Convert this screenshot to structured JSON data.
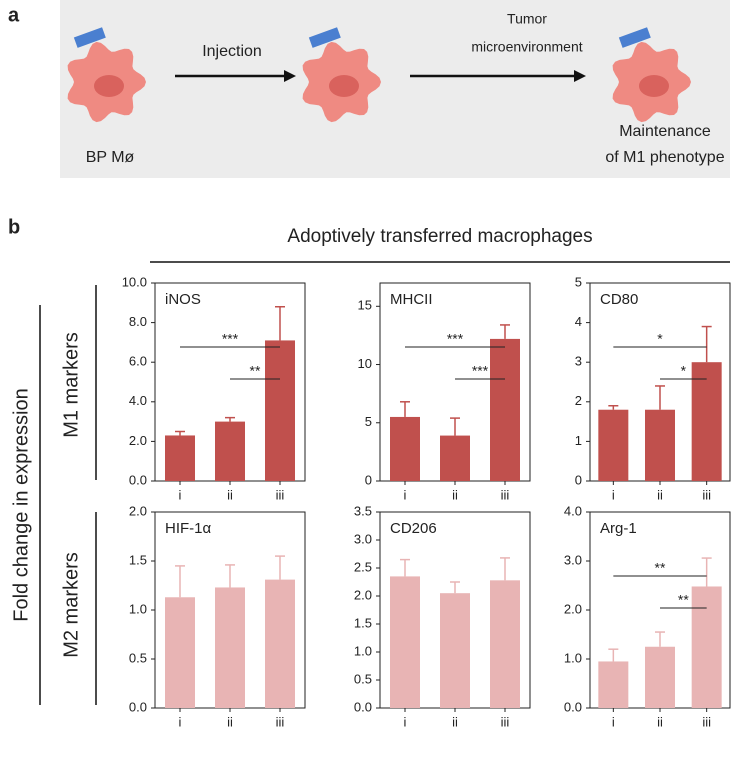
{
  "panel_a": {
    "label": "a",
    "start_label": "BP Mø",
    "injection_label": "Injection",
    "environment_label": [
      "Tumor",
      "microenvironment"
    ],
    "end_label": [
      "Maintenance",
      "of M1 phenotype"
    ]
  },
  "panel_b": {
    "label": "b",
    "group_title": "Adoptively transferred macrophages",
    "y_title": "Fold change in expression",
    "row_labels": [
      "M1 markers",
      "M2 markers"
    ]
  },
  "chart_data": [
    {
      "type": "bar",
      "title": "iNOS",
      "categories": [
        "i",
        "ii",
        "iii"
      ],
      "values": [
        2.3,
        3.0,
        7.1
      ],
      "errors": [
        0.2,
        0.2,
        1.7
      ],
      "color": "#c0504d",
      "ylim": [
        0,
        10
      ],
      "yticks": [
        {
          "value": 0,
          "label": "0.0"
        },
        {
          "value": 2,
          "label": "2.0"
        },
        {
          "value": 4,
          "label": "4.0"
        },
        {
          "value": 6,
          "label": "6.0"
        },
        {
          "value": 8,
          "label": "8.0"
        },
        {
          "value": 10,
          "label": "10.0"
        }
      ],
      "significance": [
        {
          "groups": [
            0,
            2
          ],
          "label": "***"
        },
        {
          "groups": [
            1,
            2
          ],
          "label": "**"
        }
      ]
    },
    {
      "type": "bar",
      "title": "MHCII",
      "categories": [
        "i",
        "ii",
        "iii"
      ],
      "values": [
        5.5,
        3.9,
        12.2
      ],
      "errors": [
        1.3,
        1.5,
        1.2
      ],
      "color": "#c0504d",
      "ylim": [
        0,
        17
      ],
      "yticks": [
        0,
        5,
        10,
        15
      ],
      "significance": [
        {
          "groups": [
            0,
            2
          ],
          "label": "***"
        },
        {
          "groups": [
            1,
            2
          ],
          "label": "***"
        }
      ]
    },
    {
      "type": "bar",
      "title": "CD80",
      "categories": [
        "i",
        "ii",
        "iii"
      ],
      "values": [
        1.8,
        1.8,
        3.0
      ],
      "errors": [
        0.1,
        0.6,
        0.9
      ],
      "color": "#c0504d",
      "ylim": [
        0,
        5
      ],
      "yticks": [
        0,
        1,
        2,
        3,
        4,
        5
      ],
      "significance": [
        {
          "groups": [
            0,
            2
          ],
          "label": "*"
        },
        {
          "groups": [
            1,
            2
          ],
          "label": "*"
        }
      ]
    },
    {
      "type": "bar",
      "title": "HIF-1α",
      "categories": [
        "i",
        "ii",
        "iii"
      ],
      "values": [
        1.13,
        1.23,
        1.31
      ],
      "errors": [
        0.32,
        0.23,
        0.24
      ],
      "color": "#e8b4b4",
      "ylim": [
        0,
        2
      ],
      "yticks": [
        {
          "value": 0,
          "label": "0.0"
        },
        0.5,
        {
          "value": 1,
          "label": "1.0"
        },
        1.5,
        {
          "value": 2,
          "label": "2.0"
        }
      ],
      "significance": []
    },
    {
      "type": "bar",
      "title": "CD206",
      "categories": [
        "i",
        "ii",
        "iii"
      ],
      "values": [
        2.35,
        2.05,
        2.28
      ],
      "errors": [
        0.3,
        0.2,
        0.4
      ],
      "color": "#e8b4b4",
      "ylim": [
        0,
        3.5
      ],
      "yticks": [
        {
          "value": 0,
          "label": "0.0"
        },
        0.5,
        {
          "value": 1,
          "label": "1.0"
        },
        1.5,
        {
          "value": 2,
          "label": "2.0"
        },
        2.5,
        {
          "value": 3,
          "label": "3.0"
        },
        3.5
      ],
      "significance": []
    },
    {
      "type": "bar",
      "title": "Arg-1",
      "categories": [
        "i",
        "ii",
        "iii"
      ],
      "values": [
        0.95,
        1.25,
        2.48
      ],
      "errors": [
        0.25,
        0.3,
        0.58
      ],
      "color": "#e8b4b4",
      "ylim": [
        0,
        4
      ],
      "yticks": [
        {
          "value": 0,
          "label": "0.0"
        },
        {
          "value": 1,
          "label": "1.0"
        },
        {
          "value": 2,
          "label": "2.0"
        },
        {
          "value": 3,
          "label": "3.0"
        },
        {
          "value": 4,
          "label": "4.0"
        }
      ],
      "significance": [
        {
          "groups": [
            0,
            2
          ],
          "label": "**"
        },
        {
          "groups": [
            1,
            2
          ],
          "label": "**"
        }
      ]
    }
  ]
}
